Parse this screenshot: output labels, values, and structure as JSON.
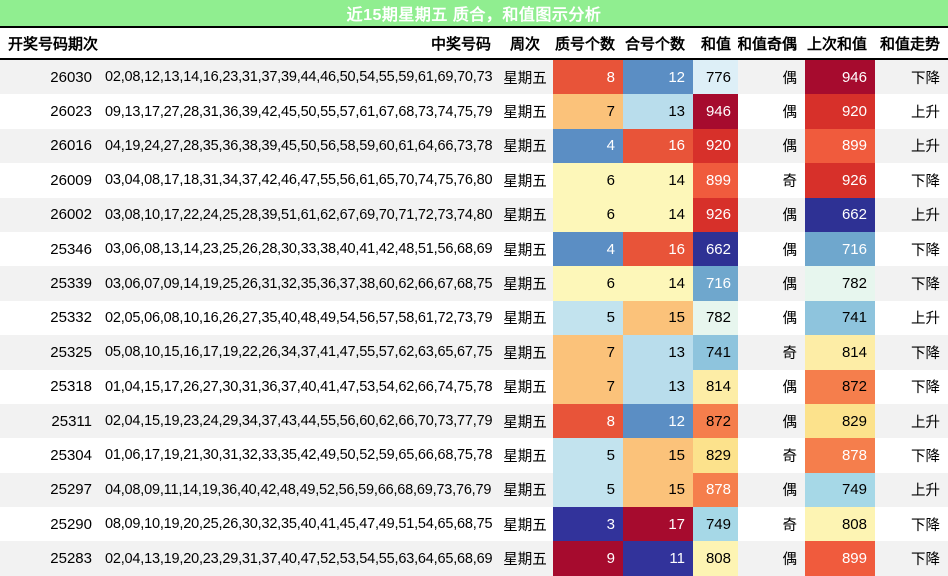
{
  "title": "近15期星期五 质合，和值图示分析",
  "theme": {
    "title_bg": "#90ee90",
    "title_fg": "#ffffff",
    "row_odd_bg": "#f2f2f2",
    "row_even_bg": "#ffffff",
    "border": "#000000"
  },
  "chart_data": {
    "type": "table",
    "title": "近15期星期五 质合，和值图示分析",
    "colormap_note": "red-yellow-blue heat shading on 质号个数 / 合号个数 / 和值 / 上次和值",
    "header": {
      "period": "开奖号码期次",
      "numbers": "中奖号码",
      "week": "周次",
      "prime": "质号个数",
      "composite": "合号个数",
      "sum": "和值",
      "parity": "和值奇偶",
      "last": "上次和值",
      "trend": "和值走势"
    },
    "rows": [
      {
        "period": "26030",
        "numbers": "02,08,12,13,14,16,23,31,37,39,44,46,50,54,55,59,61,69,70,73",
        "week": "星期五",
        "parity": "偶",
        "trend": "下降",
        "prime": {
          "v": "8",
          "bg": "#e85439",
          "fg": "#ffffff"
        },
        "composite": {
          "v": "12",
          "bg": "#5b8ec4",
          "fg": "#ffffff"
        },
        "sum": {
          "v": "776",
          "bg": "#ddeff7",
          "fg": "#000000"
        },
        "last": {
          "v": "946",
          "bg": "#a60b2e",
          "fg": "#ffffff"
        }
      },
      {
        "period": "26023",
        "numbers": "09,13,17,27,28,31,36,39,42,45,50,55,57,61,67,68,73,74,75,79",
        "week": "星期五",
        "parity": "偶",
        "trend": "上升",
        "prime": {
          "v": "7",
          "bg": "#fbc27a",
          "fg": "#000000"
        },
        "composite": {
          "v": "13",
          "bg": "#b9ddec",
          "fg": "#000000"
        },
        "sum": {
          "v": "946",
          "bg": "#a60b2e",
          "fg": "#ffffff"
        },
        "last": {
          "v": "920",
          "bg": "#d7302a",
          "fg": "#ffffff"
        }
      },
      {
        "period": "26016",
        "numbers": "04,19,24,27,28,35,36,38,39,45,50,56,58,59,60,61,64,66,73,78",
        "week": "星期五",
        "parity": "偶",
        "trend": "上升",
        "prime": {
          "v": "4",
          "bg": "#5b8ec4",
          "fg": "#ffffff"
        },
        "composite": {
          "v": "16",
          "bg": "#e85439",
          "fg": "#ffffff"
        },
        "sum": {
          "v": "920",
          "bg": "#d7302a",
          "fg": "#ffffff"
        },
        "last": {
          "v": "899",
          "bg": "#f05b3d",
          "fg": "#ffffff"
        }
      },
      {
        "period": "26009",
        "numbers": "03,04,08,17,18,31,34,37,42,46,47,55,56,61,65,70,74,75,76,80",
        "week": "星期五",
        "parity": "奇",
        "trend": "下降",
        "prime": {
          "v": "6",
          "bg": "#fdf7b9",
          "fg": "#000000"
        },
        "composite": {
          "v": "14",
          "bg": "#fdf7b9",
          "fg": "#000000"
        },
        "sum": {
          "v": "899",
          "bg": "#f05b3d",
          "fg": "#ffffff"
        },
        "last": {
          "v": "926",
          "bg": "#d7302a",
          "fg": "#ffffff"
        }
      },
      {
        "period": "26002",
        "numbers": "03,08,10,17,22,24,25,28,39,51,61,62,67,69,70,71,72,73,74,80",
        "week": "星期五",
        "parity": "偶",
        "trend": "上升",
        "prime": {
          "v": "6",
          "bg": "#fdf7b9",
          "fg": "#000000"
        },
        "composite": {
          "v": "14",
          "bg": "#fdf7b9",
          "fg": "#000000"
        },
        "sum": {
          "v": "926",
          "bg": "#d7302a",
          "fg": "#ffffff"
        },
        "last": {
          "v": "662",
          "bg": "#2e3194",
          "fg": "#ffffff"
        }
      },
      {
        "period": "25346",
        "numbers": "03,06,08,13,14,23,25,26,28,30,33,38,40,41,42,48,51,56,68,69",
        "week": "星期五",
        "parity": "偶",
        "trend": "下降",
        "prime": {
          "v": "4",
          "bg": "#5b8ec4",
          "fg": "#ffffff"
        },
        "composite": {
          "v": "16",
          "bg": "#e85439",
          "fg": "#ffffff"
        },
        "sum": {
          "v": "662",
          "bg": "#2e3194",
          "fg": "#ffffff"
        },
        "last": {
          "v": "716",
          "bg": "#6fa7cd",
          "fg": "#ffffff"
        }
      },
      {
        "period": "25339",
        "numbers": "03,06,07,09,14,19,25,26,31,32,35,36,37,38,60,62,66,67,68,75",
        "week": "星期五",
        "parity": "偶",
        "trend": "下降",
        "prime": {
          "v": "6",
          "bg": "#fdf7b9",
          "fg": "#000000"
        },
        "composite": {
          "v": "14",
          "bg": "#fdf7b9",
          "fg": "#000000"
        },
        "sum": {
          "v": "716",
          "bg": "#6fa7cd",
          "fg": "#ffffff"
        },
        "last": {
          "v": "782",
          "bg": "#e7f6ee",
          "fg": "#000000"
        }
      },
      {
        "period": "25332",
        "numbers": "02,05,06,08,10,16,26,27,35,40,48,49,54,56,57,58,61,72,73,79",
        "week": "星期五",
        "parity": "偶",
        "trend": "上升",
        "prime": {
          "v": "5",
          "bg": "#c2e3ee",
          "fg": "#000000"
        },
        "composite": {
          "v": "15",
          "bg": "#fbc27a",
          "fg": "#000000"
        },
        "sum": {
          "v": "782",
          "bg": "#e7f6ee",
          "fg": "#000000"
        },
        "last": {
          "v": "741",
          "bg": "#8ec4dd",
          "fg": "#000000"
        }
      },
      {
        "period": "25325",
        "numbers": "05,08,10,15,16,17,19,22,26,34,37,41,47,55,57,62,63,65,67,75",
        "week": "星期五",
        "parity": "奇",
        "trend": "下降",
        "prime": {
          "v": "7",
          "bg": "#fbc27a",
          "fg": "#000000"
        },
        "composite": {
          "v": "13",
          "bg": "#b9ddec",
          "fg": "#000000"
        },
        "sum": {
          "v": "741",
          "bg": "#8ec4dd",
          "fg": "#000000"
        },
        "last": {
          "v": "814",
          "bg": "#fdeda6",
          "fg": "#000000"
        }
      },
      {
        "period": "25318",
        "numbers": "01,04,15,17,26,27,30,31,36,37,40,41,47,53,54,62,66,74,75,78",
        "week": "星期五",
        "parity": "偶",
        "trend": "下降",
        "prime": {
          "v": "7",
          "bg": "#fbc27a",
          "fg": "#000000"
        },
        "composite": {
          "v": "13",
          "bg": "#b9ddec",
          "fg": "#000000"
        },
        "sum": {
          "v": "814",
          "bg": "#fdeda6",
          "fg": "#000000"
        },
        "last": {
          "v": "872",
          "bg": "#f57e4c",
          "fg": "#000000"
        }
      },
      {
        "period": "25311",
        "numbers": "02,04,15,19,23,24,29,34,37,43,44,55,56,60,62,66,70,73,77,79",
        "week": "星期五",
        "parity": "偶",
        "trend": "上升",
        "prime": {
          "v": "8",
          "bg": "#e85439",
          "fg": "#ffffff"
        },
        "composite": {
          "v": "12",
          "bg": "#5b8ec4",
          "fg": "#ffffff"
        },
        "sum": {
          "v": "872",
          "bg": "#f57e4c",
          "fg": "#000000"
        },
        "last": {
          "v": "829",
          "bg": "#fce28c",
          "fg": "#000000"
        }
      },
      {
        "period": "25304",
        "numbers": "01,06,17,19,21,30,31,32,33,35,42,49,50,52,59,65,66,68,75,78",
        "week": "星期五",
        "parity": "奇",
        "trend": "下降",
        "prime": {
          "v": "5",
          "bg": "#c2e3ee",
          "fg": "#000000"
        },
        "composite": {
          "v": "15",
          "bg": "#fbc27a",
          "fg": "#000000"
        },
        "sum": {
          "v": "829",
          "bg": "#fce28c",
          "fg": "#000000"
        },
        "last": {
          "v": "878",
          "bg": "#f57e4c",
          "fg": "#ffffff"
        }
      },
      {
        "period": "25297",
        "numbers": "04,08,09,11,14,19,36,40,42,48,49,52,56,59,66,68,69,73,76,79",
        "week": "星期五",
        "parity": "偶",
        "trend": "上升",
        "prime": {
          "v": "5",
          "bg": "#c2e3ee",
          "fg": "#000000"
        },
        "composite": {
          "v": "15",
          "bg": "#fbc27a",
          "fg": "#000000"
        },
        "sum": {
          "v": "878",
          "bg": "#f57e4c",
          "fg": "#ffffff"
        },
        "last": {
          "v": "749",
          "bg": "#a6d8e7",
          "fg": "#000000"
        }
      },
      {
        "period": "25290",
        "numbers": "08,09,10,19,20,25,26,30,32,35,40,41,45,47,49,51,54,65,68,75",
        "week": "星期五",
        "parity": "奇",
        "trend": "下降",
        "prime": {
          "v": "3",
          "bg": "#32339b",
          "fg": "#ffffff"
        },
        "composite": {
          "v": "17",
          "bg": "#a60b2e",
          "fg": "#ffffff"
        },
        "sum": {
          "v": "749",
          "bg": "#a6d8e7",
          "fg": "#000000"
        },
        "last": {
          "v": "808",
          "bg": "#fdf4b3",
          "fg": "#000000"
        }
      },
      {
        "period": "25283",
        "numbers": "02,04,13,19,20,23,29,31,37,40,47,52,53,54,55,63,64,65,68,69",
        "week": "星期五",
        "parity": "偶",
        "trend": "下降",
        "prime": {
          "v": "9",
          "bg": "#a60b2e",
          "fg": "#ffffff"
        },
        "composite": {
          "v": "11",
          "bg": "#32339b",
          "fg": "#ffffff"
        },
        "sum": {
          "v": "808",
          "bg": "#fdf4b3",
          "fg": "#000000"
        },
        "last": {
          "v": "899",
          "bg": "#f05b3d",
          "fg": "#ffffff"
        }
      }
    ]
  }
}
